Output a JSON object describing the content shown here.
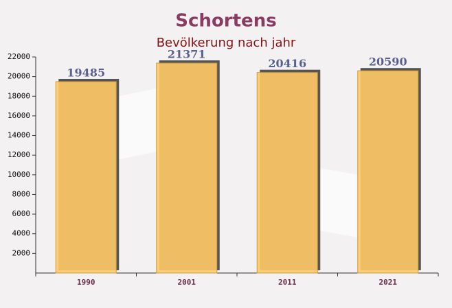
{
  "chart_data": {
    "type": "bar",
    "title": "Schortens",
    "subtitle": "Bevölkerung nach jahr",
    "categories": [
      "1990",
      "2001",
      "2011",
      "2021"
    ],
    "values": [
      19485,
      21371,
      20416,
      20590
    ],
    "color": "#ffc966",
    "ylim": [
      0,
      22000
    ],
    "yticks": [
      2000,
      4000,
      6000,
      8000,
      10000,
      12000,
      14000,
      16000,
      18000,
      20000,
      22000
    ]
  }
}
